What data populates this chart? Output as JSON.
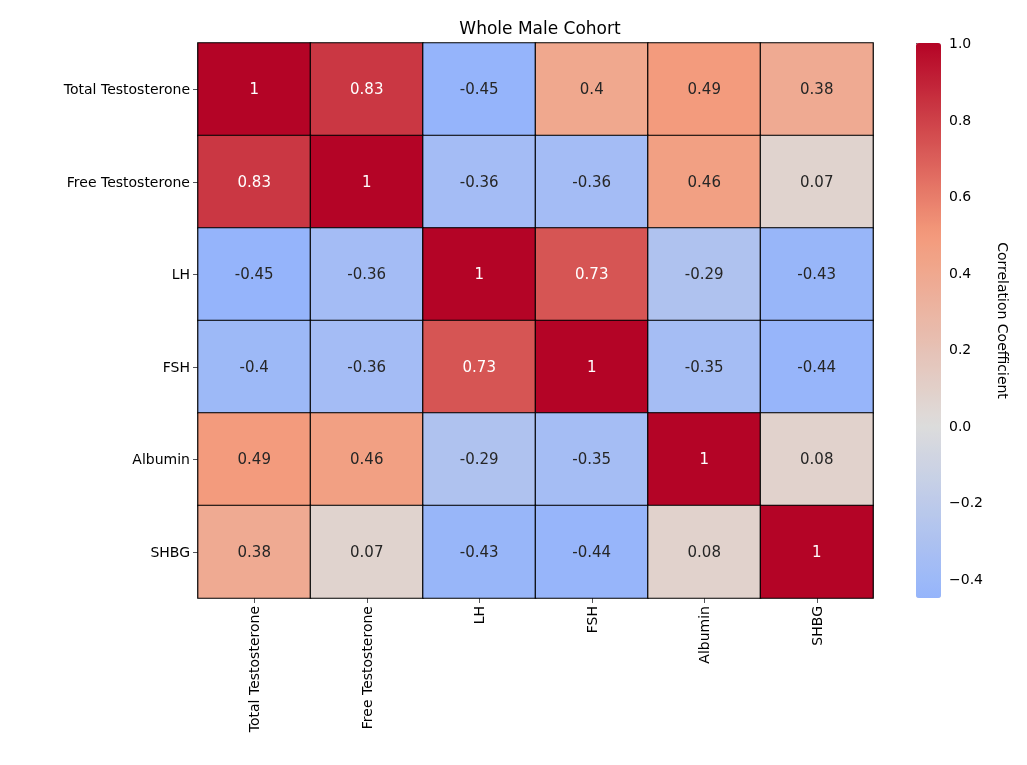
{
  "chart_data": {
    "type": "heatmap",
    "title": "Whole Male Cohort",
    "clabel": "Correlation Coefficient",
    "categories": [
      "Total Testosterone",
      "Free Testosterone",
      "LH",
      "FSH",
      "Albumin",
      "SHBG"
    ],
    "y_categories": [
      "Total Testosterone",
      "Free Testosterone",
      "LH",
      "FSH",
      "Albumin",
      "SHBG"
    ],
    "cells": [
      [
        1,
        0.83,
        -0.45,
        0.4,
        0.49,
        0.38
      ],
      [
        0.83,
        1,
        -0.36,
        -0.36,
        0.46,
        0.07
      ],
      [
        -0.45,
        -0.36,
        1,
        0.73,
        -0.29,
        -0.43
      ],
      [
        -0.4,
        -0.36,
        0.73,
        1,
        -0.35,
        -0.44
      ],
      [
        0.49,
        0.46,
        -0.29,
        -0.35,
        1,
        0.08
      ],
      [
        0.38,
        0.07,
        -0.43,
        -0.44,
        0.08,
        1
      ]
    ],
    "data_labels": true,
    "clim": [
      -0.45,
      1
    ],
    "cticks": [
      {
        "value": -0.4,
        "label": "−0.4"
      },
      {
        "value": -0.2,
        "label": "−0.2"
      },
      {
        "value": 0,
        "label": "0.0"
      },
      {
        "value": 0.2,
        "label": "0.2"
      },
      {
        "value": 0.4,
        "label": "0.4"
      },
      {
        "value": 0.6,
        "label": "0.6"
      },
      {
        "value": 0.8,
        "label": "0.8"
      },
      {
        "value": 1,
        "label": "1.0"
      }
    ]
  }
}
